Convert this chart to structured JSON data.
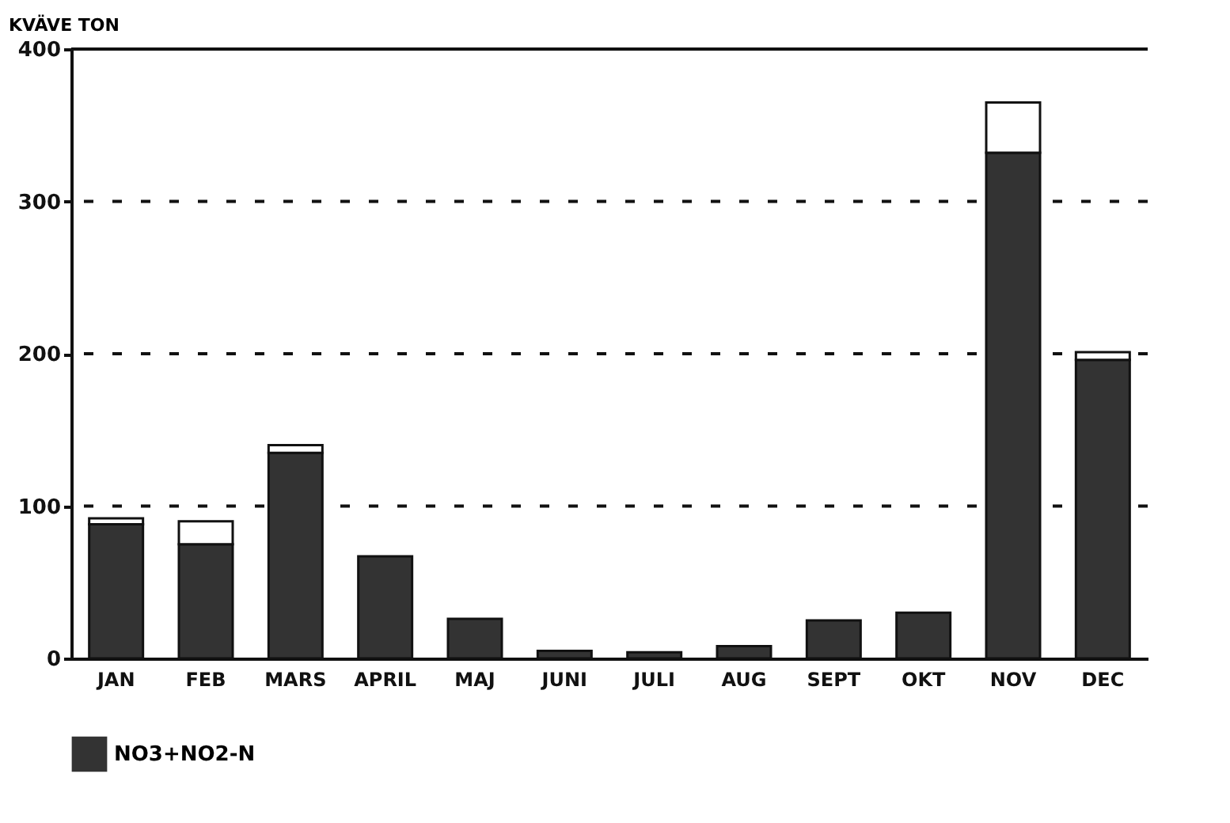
{
  "chart_data": {
    "type": "bar",
    "stacked": true,
    "ylabel": "KVÄVE TON",
    "categories": [
      "JAN",
      "FEB",
      "MARS",
      "APRIL",
      "MAJ",
      "JUNI",
      "JULI",
      "AUG",
      "SEPT",
      "OKT",
      "NOV",
      "DEC"
    ],
    "series": [
      {
        "name": "NO3+NO2-N",
        "color": "#333333",
        "values": [
          88,
          75,
          135,
          67,
          26,
          5,
          4,
          8,
          25,
          30,
          332,
          196
        ]
      },
      {
        "color": "#ffffff",
        "values": [
          4,
          15,
          5,
          null,
          null,
          null,
          null,
          null,
          null,
          null,
          33,
          5
        ]
      }
    ],
    "ylim": [
      0,
      400
    ],
    "yticks": [
      0,
      100,
      200,
      300,
      400
    ],
    "grid": "y",
    "legend": "bottom"
  }
}
